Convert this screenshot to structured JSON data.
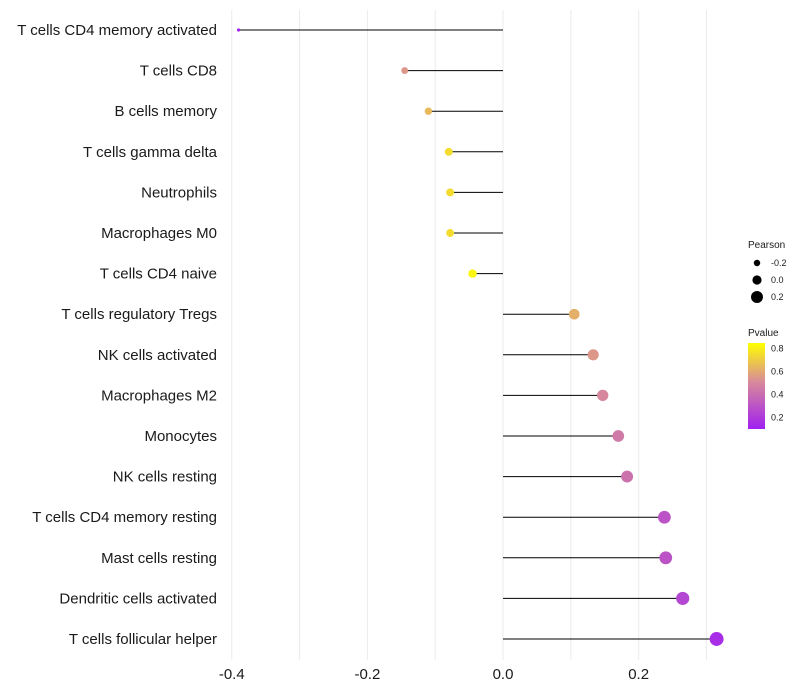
{
  "chart_data": {
    "type": "lollipop",
    "title": "",
    "xlabel": "",
    "ylabel": "",
    "xlim": [
      -0.41,
      0.32
    ],
    "x_ticks": [
      -0.4,
      -0.2,
      0.0,
      0.2
    ],
    "x_tick_labels": [
      "-0.4",
      "-0.2",
      "0.0",
      "0.2"
    ],
    "grid": true,
    "categories": [
      "T cells CD4 memory activated",
      "T cells CD8",
      "B cells memory",
      "T cells gamma delta",
      "Neutrophils",
      "Macrophages M0",
      "T cells CD4 naive",
      "T cells regulatory  Tregs",
      "NK cells activated",
      "Macrophages M2",
      "Monocytes",
      "NK cells resting",
      "T cells CD4 memory resting",
      "Mast cells resting",
      "Dendritic cells activated",
      "T cells follicular helper"
    ],
    "pearson": [
      -0.39,
      -0.145,
      -0.11,
      -0.08,
      -0.078,
      -0.078,
      -0.045,
      0.105,
      0.133,
      0.147,
      0.17,
      0.183,
      0.238,
      0.24,
      0.265,
      0.315
    ],
    "pvalue": [
      0.1,
      0.55,
      0.65,
      0.75,
      0.75,
      0.75,
      0.82,
      0.62,
      0.55,
      0.5,
      0.45,
      0.42,
      0.3,
      0.3,
      0.25,
      0.15
    ],
    "legend": {
      "size_title": "Pearson",
      "size_values": [
        -0.2,
        0.0,
        0.2
      ],
      "size_labels": [
        "-0.2",
        "0.0",
        "0.2"
      ],
      "color_title": "Pvalue",
      "color_ticks": [
        0.8,
        0.6,
        0.4,
        0.2
      ],
      "color_tick_labels": [
        "0.8",
        "0.6",
        "0.4",
        "0.2"
      ],
      "color_range": [
        0.1,
        0.85
      ],
      "placement": "right"
    },
    "colors": {
      "low": "#a020f0",
      "mid": "#d88a9a",
      "high": "#ffff00",
      "segment": "#000000",
      "grid": "#ebebeb"
    }
  }
}
